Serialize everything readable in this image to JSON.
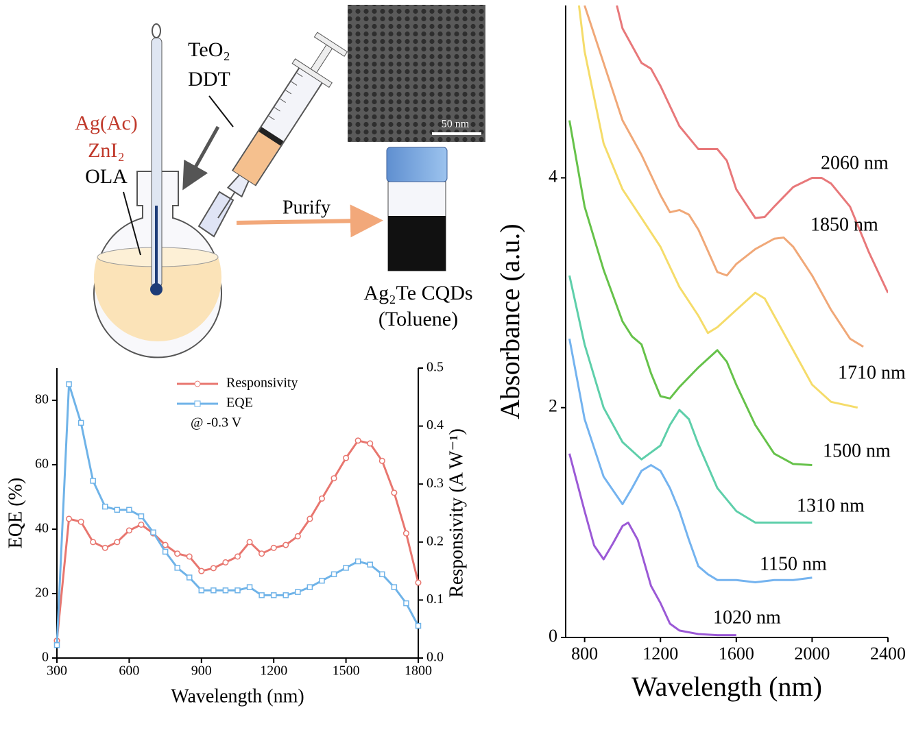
{
  "schematic": {
    "reagent_top_1": "TeO₂",
    "reagent_top_2": "DDT",
    "reagent_left_1": "Ag(Ac)",
    "reagent_left_2": "ZnI₂",
    "reagent_left_3": "OLA",
    "arrow_label": "Purify",
    "scale_bar": "50 nm",
    "product_1": "Ag₂Te CQDs",
    "product_2": "(Toluene)"
  },
  "chart_data": [
    {
      "type": "line",
      "x_label": "Wavelength (nm)",
      "y_label": "EQE (%)",
      "y2_label": "Responsivity (A W⁻¹)",
      "annotation": "@ -0.3 V",
      "x": [
        300,
        350,
        400,
        450,
        500,
        550,
        600,
        650,
        700,
        750,
        800,
        850,
        900,
        950,
        1000,
        1050,
        1100,
        1150,
        1200,
        1250,
        1300,
        1350,
        1400,
        1450,
        1500,
        1550,
        1600,
        1650,
        1700,
        1750,
        1800
      ],
      "series": [
        {
          "name": "Responsivity",
          "color": "#e8766f",
          "marker": "circle",
          "axis": "y2",
          "values": [
            0.03,
            0.24,
            0.235,
            0.2,
            0.19,
            0.2,
            0.22,
            0.23,
            0.215,
            0.195,
            0.18,
            0.175,
            0.15,
            0.155,
            0.165,
            0.175,
            0.2,
            0.18,
            0.19,
            0.195,
            0.21,
            0.24,
            0.275,
            0.31,
            0.345,
            0.375,
            0.37,
            0.34,
            0.285,
            0.215,
            0.13
          ]
        },
        {
          "name": "EQE",
          "color": "#6fb3e8",
          "marker": "square",
          "values": [
            4,
            85,
            73,
            55,
            47,
            46,
            46,
            44,
            39,
            33,
            28,
            25,
            21,
            21,
            21,
            21,
            22,
            19.5,
            19.5,
            19.5,
            20.5,
            22,
            24,
            26,
            28,
            30,
            29,
            26,
            22,
            17,
            10
          ]
        }
      ],
      "xlim": [
        300,
        1800
      ],
      "xticks": [
        300,
        600,
        900,
        1200,
        1500,
        1800
      ],
      "ylim": [
        0,
        90
      ],
      "yticks": [
        0,
        20,
        40,
        60,
        80
      ],
      "y2lim": [
        0,
        0.5
      ],
      "y2ticks": [
        {
          "value": 0,
          "label": "0.0"
        },
        0.1,
        0.2,
        0.3,
        0.4,
        0.5
      ]
    },
    {
      "type": "line",
      "x_label": "Wavelength (nm)",
      "y_label": "Absorbance (a.u.)",
      "series": [
        {
          "name": "1020 nm",
          "color": "#9b59d6",
          "x": [
            720,
            800,
            850,
            900,
            950,
            1000,
            1030,
            1080,
            1150,
            1200,
            1250,
            1300,
            1400,
            1500,
            1600
          ],
          "values": [
            1.6,
            1.1,
            0.8,
            0.68,
            0.82,
            0.97,
            1.0,
            0.85,
            0.45,
            0.3,
            0.12,
            0.06,
            0.03,
            0.02,
            0.02
          ]
        },
        {
          "name": "1150 nm",
          "color": "#74b3ef",
          "x": [
            720,
            800,
            900,
            1000,
            1050,
            1100,
            1150,
            1200,
            1250,
            1300,
            1350,
            1400,
            1450,
            1500,
            1600,
            1700,
            1800,
            1900,
            2000
          ],
          "values": [
            2.6,
            1.9,
            1.4,
            1.16,
            1.3,
            1.45,
            1.5,
            1.45,
            1.3,
            1.1,
            0.85,
            0.62,
            0.55,
            0.5,
            0.5,
            0.48,
            0.5,
            0.5,
            0.52
          ]
        },
        {
          "name": "1310 nm",
          "color": "#5ecfaa",
          "x": [
            720,
            800,
            900,
            1000,
            1100,
            1200,
            1250,
            1300,
            1350,
            1400,
            1500,
            1600,
            1700,
            1800,
            2000
          ],
          "values": [
            3.15,
            2.55,
            2.0,
            1.7,
            1.55,
            1.67,
            1.85,
            1.98,
            1.9,
            1.68,
            1.3,
            1.1,
            1.0,
            1.0,
            1.0
          ]
        },
        {
          "name": "1500 nm",
          "color": "#66c24a",
          "x": [
            720,
            800,
            900,
            1000,
            1050,
            1100,
            1150,
            1200,
            1250,
            1300,
            1400,
            1500,
            1550,
            1600,
            1700,
            1800,
            1900,
            2000
          ],
          "values": [
            4.5,
            3.75,
            3.2,
            2.75,
            2.62,
            2.55,
            2.3,
            2.1,
            2.08,
            2.18,
            2.35,
            2.5,
            2.4,
            2.2,
            1.85,
            1.6,
            1.51,
            1.5
          ]
        },
        {
          "name": "1710 nm",
          "color": "#f5dc6a",
          "x": [
            770,
            800,
            900,
            1000,
            1100,
            1200,
            1300,
            1400,
            1450,
            1500,
            1600,
            1700,
            1750,
            1800,
            1900,
            2000,
            2100,
            2240
          ],
          "values": [
            5.5,
            5.1,
            4.3,
            3.9,
            3.65,
            3.4,
            3.05,
            2.8,
            2.65,
            2.7,
            2.85,
            3.0,
            2.95,
            2.8,
            2.5,
            2.2,
            2.05,
            2.0
          ]
        },
        {
          "name": "1850 nm",
          "color": "#f0a878",
          "x": [
            800,
            900,
            1000,
            1100,
            1200,
            1250,
            1300,
            1350,
            1400,
            1500,
            1550,
            1600,
            1700,
            1800,
            1850,
            1900,
            2000,
            2100,
            2200,
            2270
          ],
          "values": [
            5.5,
            5.0,
            4.5,
            4.2,
            3.85,
            3.7,
            3.72,
            3.68,
            3.55,
            3.18,
            3.15,
            3.25,
            3.38,
            3.47,
            3.48,
            3.4,
            3.15,
            2.85,
            2.6,
            2.53
          ]
        },
        {
          "name": "2060 nm",
          "color": "#e8787a",
          "x": [
            970,
            1000,
            1100,
            1150,
            1200,
            1300,
            1400,
            1500,
            1550,
            1600,
            1700,
            1750,
            1800,
            1900,
            2000,
            2050,
            2100,
            2200,
            2300,
            2400
          ],
          "values": [
            5.5,
            5.3,
            5.0,
            4.95,
            4.8,
            4.45,
            4.25,
            4.25,
            4.15,
            3.9,
            3.65,
            3.66,
            3.75,
            3.92,
            4.0,
            4.0,
            3.95,
            3.75,
            3.35,
            3.0
          ]
        }
      ],
      "xlim": [
        700,
        2400
      ],
      "xticks": [
        800,
        1200,
        1600,
        2000,
        2400
      ],
      "ylim": [
        0,
        5.5
      ],
      "yticks": [
        0,
        2,
        4
      ]
    }
  ]
}
